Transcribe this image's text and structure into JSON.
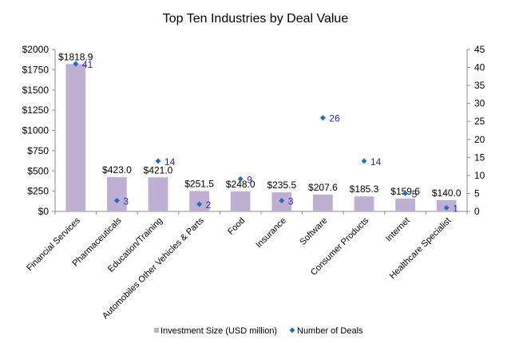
{
  "chart_data": {
    "type": "bar",
    "title": "Top Ten Industries by Deal Value",
    "xlabel": "",
    "ylabel": "",
    "y2label": "",
    "categories": [
      "Financial Services",
      "Pharmaceuticals",
      "Education/Training",
      "Automobiles Other Vehicles & Parts",
      "Food",
      "Insurance",
      "Software",
      "Consumer Products",
      "Internet",
      "Healthcare Specialist"
    ],
    "series": [
      {
        "name": "Investment Size (USD million)",
        "type": "bar",
        "axis": "left",
        "color": "#bfb0d3",
        "values": [
          1818.9,
          423.0,
          421.0,
          251.5,
          248.0,
          235.5,
          207.6,
          185.3,
          159.6,
          140.0
        ],
        "labels": [
          "$1818.9",
          "$423.0",
          "$421.0",
          "$251.5",
          "$248.0",
          "$235.5",
          "$207.6",
          "$185.3",
          "$159.6",
          "$140.0"
        ]
      },
      {
        "name": "Number of Deals",
        "type": "scatter",
        "axis": "right",
        "color": "#1f6fbf",
        "label_color": "#2323c8",
        "values": [
          41,
          3,
          14,
          2,
          9,
          3,
          26,
          14,
          5,
          1
        ],
        "labels": [
          "41",
          "3",
          "14",
          "2",
          "9",
          "3",
          "26",
          "14",
          "5",
          "1"
        ]
      }
    ],
    "ylim": [
      0,
      2000
    ],
    "y_ticks": [
      0,
      250,
      500,
      750,
      1000,
      1250,
      1500,
      1750,
      2000
    ],
    "y_tick_labels": [
      "$0",
      "$250",
      "$500",
      "$750",
      "$1000",
      "$1250",
      "$1500",
      "$1750",
      "$2000"
    ],
    "y2lim": [
      0,
      45
    ],
    "y2_ticks": [
      0,
      5,
      10,
      15,
      20,
      25,
      30,
      35,
      40,
      45
    ],
    "y2_tick_labels": [
      "0",
      "5",
      "10",
      "15",
      "20",
      "25",
      "30",
      "35",
      "40",
      "45"
    ],
    "grid": false,
    "legend_position": "bottom"
  }
}
